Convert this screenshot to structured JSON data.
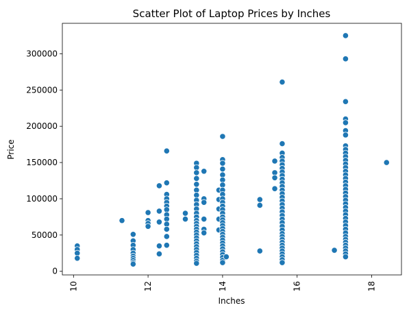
{
  "chart_data": {
    "type": "scatter",
    "title": "Scatter Plot of Laptop Prices by Inches",
    "xlabel": "Inches",
    "ylabel": "Price",
    "xlim": [
      9.7,
      18.8
    ],
    "ylim": [
      -5000,
      342000
    ],
    "xticks": [
      {
        "value": 10,
        "label": "10"
      },
      {
        "value": 12,
        "label": "12"
      },
      {
        "value": 14,
        "label": "14"
      },
      {
        "value": 16,
        "label": "16"
      },
      {
        "value": 18,
        "label": "18"
      }
    ],
    "yticks": [
      {
        "value": 0,
        "label": "0"
      },
      {
        "value": 50000,
        "label": "50000"
      },
      {
        "value": 100000,
        "label": "100000"
      },
      {
        "value": 150000,
        "label": "150000"
      },
      {
        "value": 200000,
        "label": "200000"
      },
      {
        "value": 250000,
        "label": "250000"
      },
      {
        "value": 300000,
        "label": "300000"
      }
    ],
    "grid": false,
    "color": "#1f77b4",
    "points": [
      [
        10.1,
        35000
      ],
      [
        10.1,
        30000
      ],
      [
        10.1,
        25000
      ],
      [
        10.1,
        18000
      ],
      [
        11.3,
        70000
      ],
      [
        11.6,
        51000
      ],
      [
        11.6,
        42000
      ],
      [
        11.6,
        36000
      ],
      [
        11.6,
        30000
      ],
      [
        11.6,
        25000
      ],
      [
        11.6,
        21000
      ],
      [
        11.6,
        18000
      ],
      [
        11.6,
        15000
      ],
      [
        11.6,
        12000
      ],
      [
        11.6,
        10000
      ],
      [
        12.0,
        81000
      ],
      [
        12.0,
        70000
      ],
      [
        12.0,
        66000
      ],
      [
        12.0,
        62000
      ],
      [
        12.3,
        118000
      ],
      [
        12.3,
        83000
      ],
      [
        12.3,
        68000
      ],
      [
        12.3,
        35000
      ],
      [
        12.3,
        24000
      ],
      [
        12.5,
        166000
      ],
      [
        12.5,
        122000
      ],
      [
        12.5,
        106000
      ],
      [
        12.5,
        100000
      ],
      [
        12.5,
        95000
      ],
      [
        12.5,
        90000
      ],
      [
        12.5,
        85000
      ],
      [
        12.5,
        78000
      ],
      [
        12.5,
        72000
      ],
      [
        12.5,
        65000
      ],
      [
        12.5,
        58000
      ],
      [
        12.5,
        48000
      ],
      [
        12.5,
        36000
      ],
      [
        13.0,
        80000
      ],
      [
        13.0,
        72000
      ],
      [
        13.3,
        149000
      ],
      [
        13.3,
        143000
      ],
      [
        13.3,
        136000
      ],
      [
        13.3,
        128000
      ],
      [
        13.3,
        120000
      ],
      [
        13.3,
        112000
      ],
      [
        13.3,
        105000
      ],
      [
        13.3,
        98000
      ],
      [
        13.3,
        92000
      ],
      [
        13.3,
        86000
      ],
      [
        13.3,
        80000
      ],
      [
        13.3,
        75000
      ],
      [
        13.3,
        70000
      ],
      [
        13.3,
        66000
      ],
      [
        13.3,
        62000
      ],
      [
        13.3,
        58000
      ],
      [
        13.3,
        54000
      ],
      [
        13.3,
        50000
      ],
      [
        13.3,
        46000
      ],
      [
        13.3,
        42000
      ],
      [
        13.3,
        38000
      ],
      [
        13.3,
        34000
      ],
      [
        13.3,
        30000
      ],
      [
        13.3,
        26000
      ],
      [
        13.3,
        22000
      ],
      [
        13.3,
        18000
      ],
      [
        13.3,
        14000
      ],
      [
        13.3,
        11000
      ],
      [
        13.5,
        138000
      ],
      [
        13.5,
        100000
      ],
      [
        13.5,
        95000
      ],
      [
        13.5,
        72000
      ],
      [
        13.5,
        58000
      ],
      [
        13.5,
        53000
      ],
      [
        13.9,
        112000
      ],
      [
        13.9,
        99000
      ],
      [
        13.9,
        86000
      ],
      [
        13.9,
        72000
      ],
      [
        13.9,
        57000
      ],
      [
        14.0,
        186000
      ],
      [
        14.0,
        154000
      ],
      [
        14.0,
        149000
      ],
      [
        14.0,
        141000
      ],
      [
        14.0,
        133000
      ],
      [
        14.0,
        126000
      ],
      [
        14.0,
        119000
      ],
      [
        14.0,
        112000
      ],
      [
        14.0,
        106000
      ],
      [
        14.0,
        100000
      ],
      [
        14.0,
        95000
      ],
      [
        14.0,
        90000
      ],
      [
        14.0,
        85000
      ],
      [
        14.0,
        80000
      ],
      [
        14.0,
        75000
      ],
      [
        14.0,
        71000
      ],
      [
        14.0,
        67000
      ],
      [
        14.0,
        63000
      ],
      [
        14.0,
        59000
      ],
      [
        14.0,
        55000
      ],
      [
        14.0,
        51000
      ],
      [
        14.0,
        47000
      ],
      [
        14.0,
        43000
      ],
      [
        14.0,
        39000
      ],
      [
        14.0,
        35000
      ],
      [
        14.0,
        31000
      ],
      [
        14.0,
        27000
      ],
      [
        14.0,
        23000
      ],
      [
        14.0,
        19000
      ],
      [
        14.0,
        15000
      ],
      [
        14.0,
        12000
      ],
      [
        14.1,
        20000
      ],
      [
        15.0,
        99000
      ],
      [
        15.0,
        91000
      ],
      [
        15.0,
        28000
      ],
      [
        15.4,
        152000
      ],
      [
        15.4,
        136000
      ],
      [
        15.4,
        129000
      ],
      [
        15.4,
        114000
      ],
      [
        15.6,
        261000
      ],
      [
        15.6,
        176000
      ],
      [
        15.6,
        163000
      ],
      [
        15.6,
        157000
      ],
      [
        15.6,
        152000
      ],
      [
        15.6,
        147000
      ],
      [
        15.6,
        142000
      ],
      [
        15.6,
        137000
      ],
      [
        15.6,
        132000
      ],
      [
        15.6,
        127000
      ],
      [
        15.6,
        122000
      ],
      [
        15.6,
        117000
      ],
      [
        15.6,
        112000
      ],
      [
        15.6,
        107000
      ],
      [
        15.6,
        102000
      ],
      [
        15.6,
        97000
      ],
      [
        15.6,
        92000
      ],
      [
        15.6,
        87000
      ],
      [
        15.6,
        82000
      ],
      [
        15.6,
        77000
      ],
      [
        15.6,
        72000
      ],
      [
        15.6,
        67000
      ],
      [
        15.6,
        62000
      ],
      [
        15.6,
        57000
      ],
      [
        15.6,
        52000
      ],
      [
        15.6,
        48000
      ],
      [
        15.6,
        44000
      ],
      [
        15.6,
        40000
      ],
      [
        15.6,
        36000
      ],
      [
        15.6,
        32000
      ],
      [
        15.6,
        28000
      ],
      [
        15.6,
        24000
      ],
      [
        15.6,
        20000
      ],
      [
        15.6,
        16000
      ],
      [
        15.6,
        12000
      ],
      [
        17.0,
        29000
      ],
      [
        17.3,
        325000
      ],
      [
        17.3,
        293000
      ],
      [
        17.3,
        234000
      ],
      [
        17.3,
        210000
      ],
      [
        17.3,
        205000
      ],
      [
        17.3,
        194000
      ],
      [
        17.3,
        188000
      ],
      [
        17.3,
        173000
      ],
      [
        17.3,
        168000
      ],
      [
        17.3,
        163000
      ],
      [
        17.3,
        158000
      ],
      [
        17.3,
        153000
      ],
      [
        17.3,
        148000
      ],
      [
        17.3,
        143000
      ],
      [
        17.3,
        138000
      ],
      [
        17.3,
        133000
      ],
      [
        17.3,
        128000
      ],
      [
        17.3,
        123000
      ],
      [
        17.3,
        118000
      ],
      [
        17.3,
        113000
      ],
      [
        17.3,
        108000
      ],
      [
        17.3,
        103000
      ],
      [
        17.3,
        98000
      ],
      [
        17.3,
        93000
      ],
      [
        17.3,
        88000
      ],
      [
        17.3,
        83000
      ],
      [
        17.3,
        78000
      ],
      [
        17.3,
        73000
      ],
      [
        17.3,
        68000
      ],
      [
        17.3,
        63000
      ],
      [
        17.3,
        58000
      ],
      [
        17.3,
        53000
      ],
      [
        17.3,
        48000
      ],
      [
        17.3,
        44000
      ],
      [
        17.3,
        40000
      ],
      [
        17.3,
        36000
      ],
      [
        17.3,
        32000
      ],
      [
        17.3,
        28000
      ],
      [
        17.3,
        24000
      ],
      [
        17.3,
        20000
      ],
      [
        18.4,
        150000
      ]
    ]
  }
}
